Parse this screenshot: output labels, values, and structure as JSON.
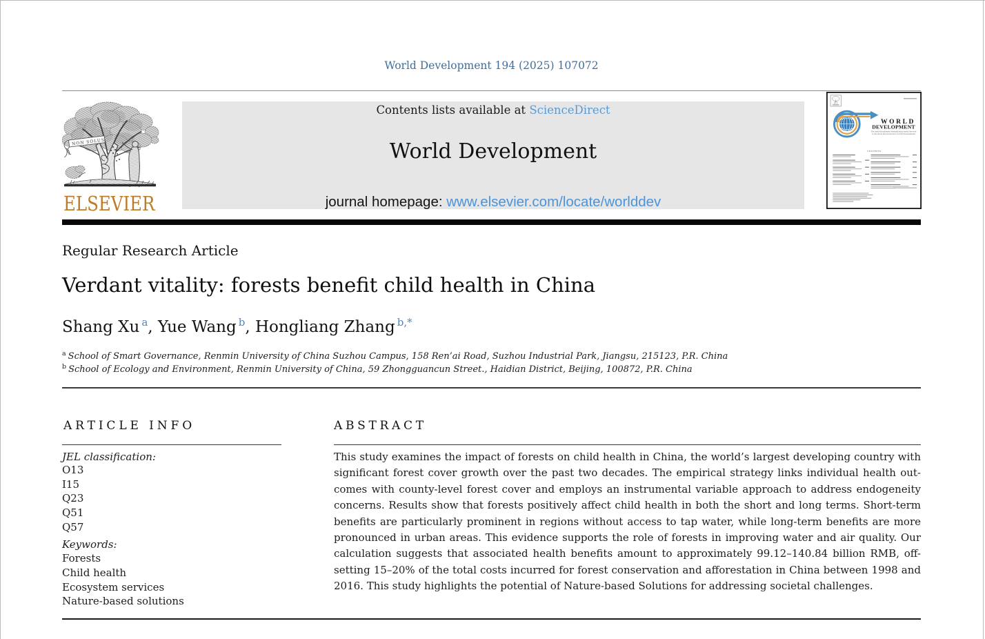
{
  "masthead": {
    "journal_ref": "World Development 194 (2025) 107072"
  },
  "header": {
    "contents_prefix": "Contents lists available at ",
    "sciencedirect_link": "ScienceDirect",
    "journal_title": "World Development",
    "homepage_prefix": "journal homepage: ",
    "homepage_url": "www.elsevier.com/locate/worlddev",
    "elsevier_wordmark": "ELSEVIER",
    "non_solus_banner": "NON SOLUS"
  },
  "cover": {
    "title_line1": "WORLD",
    "title_line2": "DEVELOPMENT",
    "tagline_line1": "The multi-disciplinary international journal devoted",
    "tagline_line2": "to the study and promotion of world development",
    "contents_heading": "CONTENTS"
  },
  "article": {
    "type": "Regular Research Article",
    "title": "Verdant vitality: forests benefit child health in China",
    "authors": [
      {
        "name": "Shang Xu",
        "sup": "a",
        "sep": ", "
      },
      {
        "name": "Yue Wang",
        "sup": "b",
        "sep": ", "
      },
      {
        "name": "Hongliang Zhang",
        "sup": "b,*",
        "sep": ""
      }
    ],
    "affiliations": [
      {
        "sup": "a",
        "text": "School of Smart Governance, Renmin University of China Suzhou Campus, 158 Ren’ai Road, Suzhou Industrial Park, Jiangsu, 215123, P.R. China"
      },
      {
        "sup": "b",
        "text": "School of Ecology and Environment, Renmin University of China, 59 Zhongguancun Street., Haidian District, Beijing, 100872, P.R. China"
      }
    ]
  },
  "article_info": {
    "heading": "ARTICLE INFO",
    "jel_label": "JEL classification:",
    "jel_codes": [
      "O13",
      "I15",
      "Q23",
      "Q51",
      "Q57"
    ],
    "keywords_label": "Keywords:",
    "keywords": [
      "Forests",
      "Child health",
      "Ecosystem services",
      "Nature-based solutions"
    ]
  },
  "abstract": {
    "heading": "ABSTRACT",
    "lines": [
      "This study examines the impact of forests on child health in China, the world’s largest developing country with",
      "significant forest cover growth over the past two decades. The empirical strategy links individual health out-",
      "comes with county-level forest cover and employs an instrumental variable approach to address endogeneity",
      "concerns. Results show that forests positively affect child health in both the short and long terms. Short-term",
      "benefits are particularly prominent in regions without access to tap water, while long-term benefits are more",
      "pronounced in urban areas. This evidence supports the role of forests in improving water and air quality. Our",
      "calculation suggests that associated health benefits amount to approximately 99.12–140.84 billion RMB, off-",
      "setting 15–20% of the total costs incurred for forest conservation and afforestation in China between 1998 and",
      "2016. This study highlights the potential of Nature-based Solutions for addressing societal challenges."
    ]
  },
  "colors": {
    "link_blue": "#5b9bd5",
    "url_blue": "#4c94d8",
    "ref_blue": "#3f6f9f",
    "superscript_blue": "#4d86c2",
    "elsevier_orange": "#bf7c28",
    "header_box_gray": "#e6e6e6",
    "cover_ring_blue": "#4a8fc2",
    "cover_ring_orange": "#e2a243",
    "cover_globe_blue": "#3d7db5"
  }
}
